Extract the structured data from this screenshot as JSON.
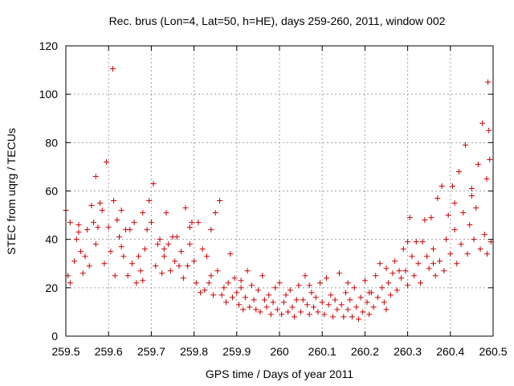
{
  "chart_data": {
    "type": "scatter",
    "title": "Rec. brus (Lon=4, Lat=50, h=HE), days 259-260, 2011, window 002",
    "xlabel": "GPS time / Days of year 2011",
    "ylabel": "STEC from uqrg / TECUs",
    "xlim": [
      259.5,
      260.5
    ],
    "ylim": [
      0,
      120
    ],
    "xticks": [
      259.5,
      259.6,
      259.7,
      259.8,
      259.9,
      260,
      260.1,
      260.2,
      260.3,
      260.4,
      260.5
    ],
    "xtick_labels": [
      "259.5",
      "259.6",
      "259.7",
      "259.8",
      "259.9",
      "260",
      "260.1",
      "260.2",
      "260.3",
      "260.4",
      "260.5"
    ],
    "yticks": [
      0,
      20,
      40,
      60,
      80,
      100,
      120
    ],
    "ytick_labels": [
      "0",
      "20",
      "40",
      "60",
      "80",
      "100",
      "120"
    ],
    "grid": true,
    "marker": "+",
    "color": "#cc0000",
    "series": [
      {
        "points": [
          [
            259.5,
            52
          ],
          [
            259.51,
            47
          ],
          [
            259.505,
            25
          ],
          [
            259.51,
            22
          ],
          [
            259.52,
            31
          ],
          [
            259.525,
            40
          ],
          [
            259.53,
            46
          ],
          [
            259.535,
            35
          ],
          [
            259.54,
            26
          ],
          [
            259.545,
            33
          ],
          [
            259.55,
            44
          ],
          [
            259.555,
            29
          ],
          [
            259.56,
            54
          ],
          [
            259.565,
            47
          ],
          [
            259.57,
            66
          ],
          [
            259.575,
            45
          ],
          [
            259.58,
            55
          ],
          [
            259.585,
            52
          ],
          [
            259.59,
            30
          ],
          [
            259.595,
            72
          ],
          [
            259.6,
            45
          ],
          [
            259.605,
            35
          ],
          [
            259.61,
            110.5
          ],
          [
            259.612,
            56
          ],
          [
            259.615,
            25
          ],
          [
            259.62,
            48
          ],
          [
            259.625,
            41
          ],
          [
            259.63,
            52
          ],
          [
            259.635,
            33
          ],
          [
            259.64,
            44
          ],
          [
            259.645,
            25
          ],
          [
            259.65,
            44
          ],
          [
            259.655,
            30
          ],
          [
            259.66,
            47
          ],
          [
            259.665,
            22
          ],
          [
            259.67,
            33
          ],
          [
            259.675,
            27
          ],
          [
            259.68,
            51
          ],
          [
            259.685,
            36
          ],
          [
            259.69,
            44
          ],
          [
            259.695,
            56
          ],
          [
            259.7,
            47
          ],
          [
            259.705,
            63
          ],
          [
            259.71,
            29
          ],
          [
            259.715,
            38
          ],
          [
            259.72,
            40
          ],
          [
            259.725,
            26
          ],
          [
            259.73,
            36
          ],
          [
            259.735,
            51
          ],
          [
            259.74,
            38
          ],
          [
            259.745,
            27
          ],
          [
            259.75,
            41
          ],
          [
            259.755,
            31
          ],
          [
            259.76,
            41
          ],
          [
            259.765,
            29
          ],
          [
            259.77,
            35
          ],
          [
            259.775,
            24
          ],
          [
            259.78,
            53
          ],
          [
            259.785,
            29
          ],
          [
            259.79,
            38
          ],
          [
            259.795,
            47
          ],
          [
            259.8,
            31
          ],
          [
            259.805,
            22
          ],
          [
            259.81,
            47
          ],
          [
            259.815,
            18
          ],
          [
            259.82,
            36
          ],
          [
            259.825,
            19
          ],
          [
            259.83,
            33
          ],
          [
            259.835,
            22
          ],
          [
            259.84,
            44
          ],
          [
            259.845,
            17
          ],
          [
            259.85,
            51
          ],
          [
            259.855,
            27
          ],
          [
            259.86,
            56
          ],
          [
            259.865,
            17
          ],
          [
            259.87,
            20
          ],
          [
            259.875,
            14
          ],
          [
            259.88,
            22
          ],
          [
            259.885,
            34
          ],
          [
            259.89,
            16
          ],
          [
            259.895,
            24
          ],
          [
            259.9,
            18
          ],
          [
            259.905,
            13
          ],
          [
            259.91,
            20
          ],
          [
            259.915,
            11
          ],
          [
            259.92,
            16
          ],
          [
            259.925,
            27
          ],
          [
            259.93,
            12
          ],
          [
            259.935,
            21
          ],
          [
            259.94,
            15
          ],
          [
            259.945,
            11
          ],
          [
            259.95,
            19
          ],
          [
            259.955,
            10
          ],
          [
            259.96,
            25
          ],
          [
            259.965,
            15
          ],
          [
            259.97,
            12
          ],
          [
            259.975,
            17
          ],
          [
            259.98,
            9
          ],
          [
            259.985,
            14
          ],
          [
            259.99,
            20
          ],
          [
            259.995,
            11
          ],
          [
            260.0,
            22
          ],
          [
            260.005,
            9
          ],
          [
            260.01,
            14
          ],
          [
            260.015,
            17
          ],
          [
            260.02,
            10
          ],
          [
            260.025,
            19
          ],
          [
            260.03,
            12
          ],
          [
            260.035,
            8
          ],
          [
            260.04,
            15
          ],
          [
            260.045,
            21
          ],
          [
            260.05,
            10
          ],
          [
            260.055,
            15
          ],
          [
            260.06,
            25
          ],
          [
            260.065,
            13
          ],
          [
            260.07,
            9
          ],
          [
            260.075,
            18
          ],
          [
            260.08,
            12
          ],
          [
            260.085,
            16
          ],
          [
            260.09,
            10
          ],
          [
            260.095,
            22
          ],
          [
            260.1,
            14
          ],
          [
            260.105,
            9
          ],
          [
            260.11,
            24
          ],
          [
            260.115,
            13
          ],
          [
            260.12,
            17
          ],
          [
            260.125,
            8
          ],
          [
            260.13,
            15
          ],
          [
            260.135,
            11
          ],
          [
            260.14,
            26
          ],
          [
            260.145,
            13
          ],
          [
            260.15,
            8
          ],
          [
            260.155,
            18
          ],
          [
            260.16,
            11
          ],
          [
            260.165,
            15
          ],
          [
            260.17,
            8
          ],
          [
            260.175,
            20
          ],
          [
            260.18,
            12
          ],
          [
            260.185,
            7
          ],
          [
            260.19,
            16
          ],
          [
            260.195,
            10
          ],
          [
            260.2,
            23
          ],
          [
            260.205,
            14
          ],
          [
            260.21,
            9
          ],
          [
            260.215,
            18
          ],
          [
            260.22,
            12
          ],
          [
            260.225,
            25
          ],
          [
            260.23,
            16
          ],
          [
            260.235,
            30
          ],
          [
            260.24,
            20
          ],
          [
            260.245,
            14
          ],
          [
            260.25,
            28
          ],
          [
            260.255,
            22
          ],
          [
            260.26,
            17
          ],
          [
            260.265,
            26
          ],
          [
            260.27,
            31
          ],
          [
            260.275,
            19
          ],
          [
            260.28,
            27
          ],
          [
            260.285,
            24
          ],
          [
            260.29,
            36
          ],
          [
            260.295,
            27
          ],
          [
            260.3,
            39
          ],
          [
            260.305,
            49
          ],
          [
            260.31,
            33
          ],
          [
            260.315,
            25
          ],
          [
            260.32,
            39
          ],
          [
            260.325,
            30
          ],
          [
            260.33,
            22
          ],
          [
            260.335,
            39
          ],
          [
            260.34,
            48
          ],
          [
            260.345,
            33
          ],
          [
            260.35,
            28
          ],
          [
            260.355,
            49
          ],
          [
            260.36,
            36
          ],
          [
            260.365,
            25
          ],
          [
            260.37,
            57
          ],
          [
            260.375,
            31
          ],
          [
            260.38,
            62
          ],
          [
            260.385,
            27
          ],
          [
            260.39,
            40
          ],
          [
            260.395,
            50
          ],
          [
            260.4,
            34
          ],
          [
            260.405,
            62
          ],
          [
            260.41,
            44
          ],
          [
            260.415,
            30
          ],
          [
            260.42,
            68
          ],
          [
            260.425,
            38
          ],
          [
            260.43,
            51
          ],
          [
            260.435,
            79
          ],
          [
            260.44,
            34
          ],
          [
            260.445,
            46
          ],
          [
            260.45,
            58
          ],
          [
            260.455,
            40
          ],
          [
            260.46,
            53
          ],
          [
            260.465,
            71
          ],
          [
            260.47,
            36
          ],
          [
            260.475,
            88
          ],
          [
            260.48,
            42
          ],
          [
            260.485,
            65
          ],
          [
            260.49,
            85
          ],
          [
            260.488,
            105
          ],
          [
            260.492,
            73
          ],
          [
            260.495,
            39
          ],
          [
            260.486,
            34
          ],
          [
            260.45,
            61
          ],
          [
            260.41,
            55
          ],
          [
            260.36,
            30
          ],
          [
            260.3,
            21
          ],
          [
            260.25,
            11
          ],
          [
            260.21,
            18
          ],
          [
            259.53,
            43
          ],
          [
            259.57,
            38
          ],
          [
            259.63,
            37
          ],
          [
            259.68,
            23
          ],
          [
            259.73,
            33
          ],
          [
            259.79,
            45
          ],
          [
            259.84,
            25
          ],
          [
            259.91,
            23
          ],
          [
            260.07,
            21
          ],
          [
            260.16,
            22
          ]
        ]
      }
    ]
  }
}
